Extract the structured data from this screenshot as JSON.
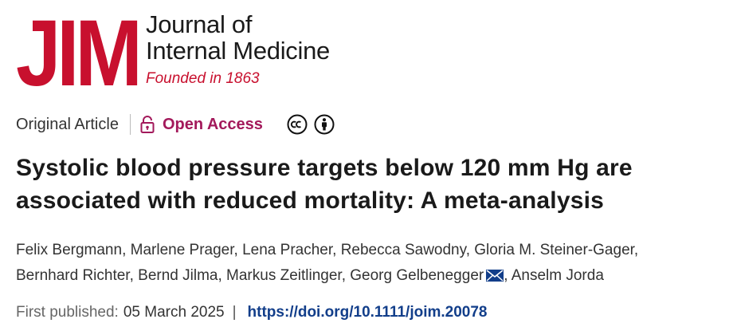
{
  "journal": {
    "logo_mark": "JIM",
    "name_line1": "Journal of",
    "name_line2": "Internal Medicine",
    "founded": "Founded in 1863",
    "brand_color": "#c8102e"
  },
  "article_meta": {
    "type": "Original Article",
    "access": "Open Access",
    "access_icon": "lock-icon",
    "access_color": "#a3195b",
    "license_icons": [
      "creative-commons-icon",
      "attribution-icon"
    ]
  },
  "title": "Systolic blood pressure targets below 120 mm Hg are associated with reduced mortality: A meta-analysis",
  "authors": [
    {
      "name": "Felix Bergmann"
    },
    {
      "name": "Marlene Prager"
    },
    {
      "name": "Lena Pracher"
    },
    {
      "name": "Rebecca Sawodny"
    },
    {
      "name": "Gloria M. Steiner-Gager"
    },
    {
      "name": "Bernhard Richter"
    },
    {
      "name": "Bernd Jilma"
    },
    {
      "name": "Markus Zeitlinger"
    },
    {
      "name": "Georg Gelbenegger",
      "corresponding": true
    },
    {
      "name": "Anselm Jorda"
    }
  ],
  "publication": {
    "label": "First published:",
    "date": "05 March 2025",
    "separator": "|",
    "doi": "https://doi.org/10.1111/joim.20078",
    "doi_color": "#123e8a"
  }
}
